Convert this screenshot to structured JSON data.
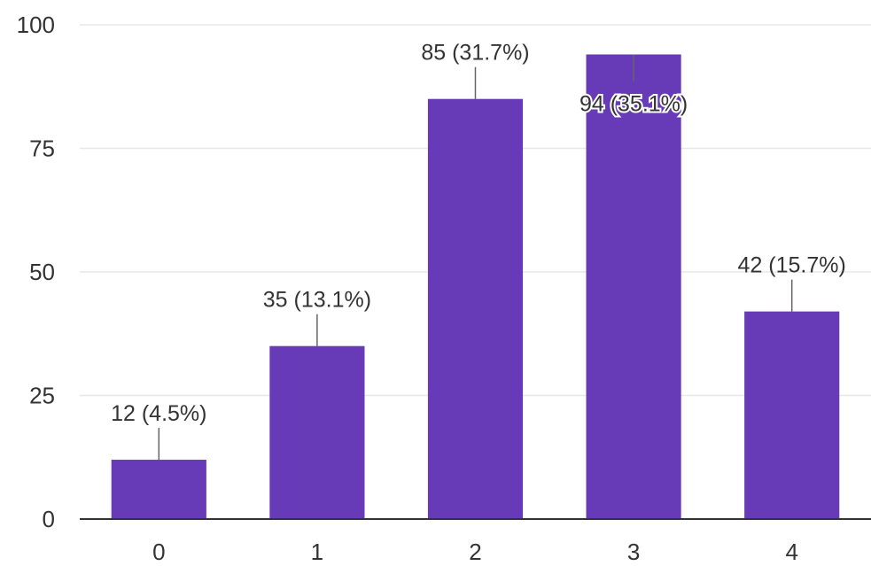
{
  "chart_data": {
    "type": "bar",
    "categories": [
      "0",
      "1",
      "2",
      "3",
      "4"
    ],
    "values": [
      12,
      35,
      85,
      94,
      42
    ],
    "data_labels": [
      "12 (4.5%)",
      "35 (13.1%)",
      "85 (31.7%)",
      "94 (35.1%)",
      "42 (15.7%)"
    ],
    "y_ticks": [
      "0",
      "25",
      "50",
      "75",
      "100"
    ],
    "ylim": [
      0,
      100
    ],
    "grid": true,
    "legend": "none",
    "bar_color": "#673ab7"
  }
}
